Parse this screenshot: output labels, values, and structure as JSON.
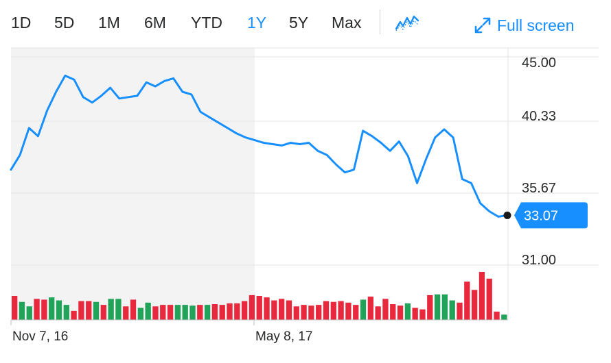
{
  "toolbar": {
    "ranges": [
      "1D",
      "5D",
      "1M",
      "6M",
      "YTD",
      "1Y",
      "5Y",
      "Max"
    ],
    "active_range": "1Y",
    "chart_type_icon": "line-chart-icon",
    "fullscreen_icon": "expand-arrows-icon",
    "fullscreen_label": "Full screen"
  },
  "colors": {
    "accent": "#188fff",
    "line": "#188fff",
    "volume_up": "#21a35a",
    "volume_down": "#e8283c",
    "shaded_region": "#f3f3f3",
    "grid": "#e3e3e3"
  },
  "chart_data": {
    "type": "line",
    "ylim": [
      29.5,
      45.0
    ],
    "y_ticks": [
      "45.00",
      "40.33",
      "35.67",
      "31.00"
    ],
    "x_tick_labels": [
      "Nov 7, 16",
      "May 8, 17"
    ],
    "current_price_label": "33.07",
    "shaded_period": "Nov 7, 16 – May 8, 17",
    "price": [
      36.6,
      37.7,
      39.7,
      39.1,
      41.0,
      42.4,
      43.6,
      43.3,
      42.0,
      41.6,
      42.1,
      42.7,
      41.9,
      42.0,
      42.1,
      43.1,
      42.8,
      43.2,
      43.4,
      42.4,
      42.2,
      40.9,
      40.5,
      40.1,
      39.7,
      39.3,
      39.0,
      38.8,
      38.6,
      38.5,
      38.4,
      38.6,
      38.5,
      38.6,
      38.0,
      37.7,
      37.0,
      36.4,
      36.6,
      39.5,
      39.1,
      38.6,
      38.0,
      38.7,
      37.6,
      35.6,
      37.4,
      39.0,
      39.6,
      39.0,
      35.9,
      35.6,
      34.1,
      33.5,
      33.1,
      33.2
    ],
    "volume": {
      "values": [
        32,
        24,
        18,
        28,
        27,
        30,
        26,
        20,
        12,
        25,
        25,
        24,
        20,
        28,
        28,
        18,
        27,
        16,
        23,
        18,
        20,
        20,
        20,
        20,
        19,
        20,
        20,
        21,
        20,
        22,
        22,
        25,
        33,
        32,
        30,
        26,
        28,
        26,
        18,
        20,
        19,
        20,
        25,
        24,
        25,
        23,
        20,
        27,
        31,
        18,
        28,
        21,
        19,
        22,
        16,
        14,
        33,
        34,
        34,
        26,
        23,
        51,
        40,
        64,
        55,
        11,
        7
      ],
      "direction": [
        "down",
        "up",
        "up",
        "down",
        "down",
        "up",
        "up",
        "up",
        "down",
        "down",
        "down",
        "up",
        "down",
        "up",
        "up",
        "down",
        "down",
        "up",
        "up",
        "down",
        "down",
        "down",
        "up",
        "up",
        "up",
        "down",
        "up",
        "down",
        "down",
        "down",
        "down",
        "down",
        "down",
        "down",
        "down",
        "down",
        "down",
        "down",
        "down",
        "down",
        "down",
        "down",
        "down",
        "down",
        "down",
        "down",
        "down",
        "up",
        "down",
        "down",
        "down",
        "down",
        "down",
        "up",
        "down",
        "down",
        "down",
        "up",
        "up",
        "up",
        "down",
        "down",
        "down",
        "down",
        "down",
        "down",
        "up"
      ]
    },
    "grid": true,
    "legend": "none"
  }
}
